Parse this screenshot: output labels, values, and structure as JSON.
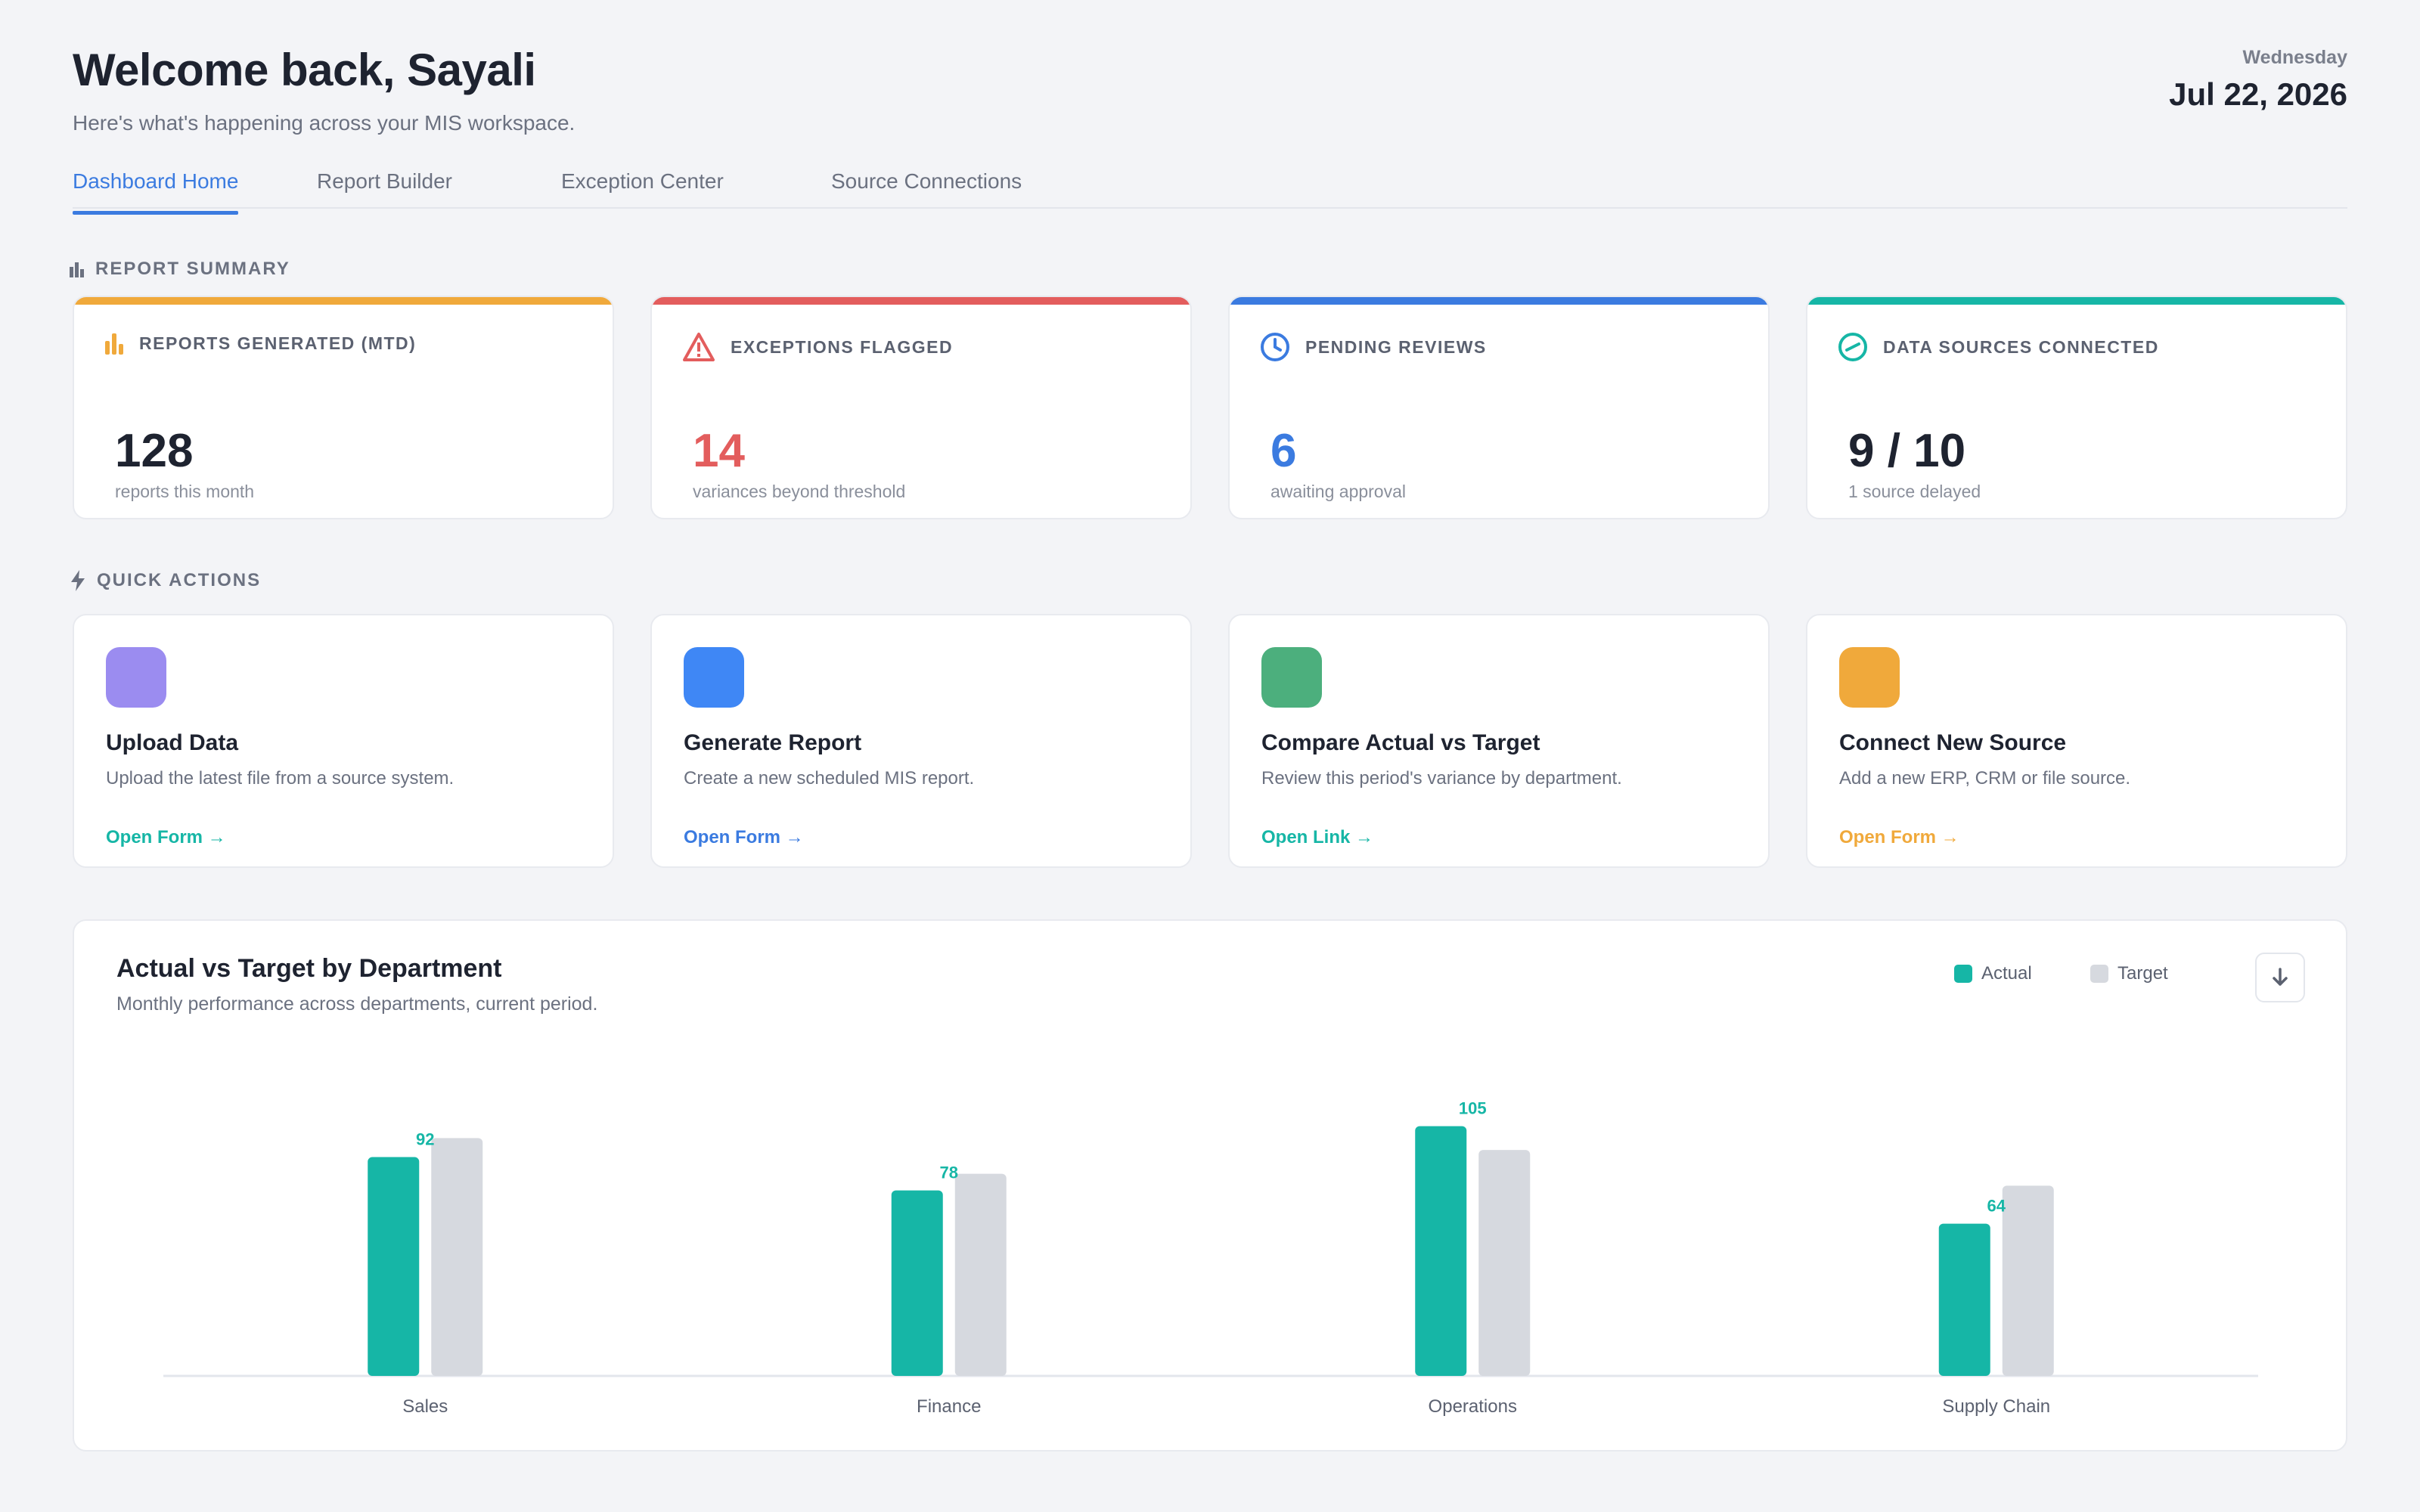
{
  "header": {
    "title": "Welcome back, Sayali",
    "subtitle": "Here's what's happening across your MIS workspace.",
    "weekday": "Wednesday",
    "date": "Jul 22, 2026"
  },
  "tabs": [
    {
      "label": "Dashboard Home",
      "active": true
    },
    {
      "label": "Report Builder",
      "active": false
    },
    {
      "label": "Exception Center",
      "active": false
    },
    {
      "label": "Source Connections",
      "active": false
    }
  ],
  "summary": {
    "label": "REPORT SUMMARY",
    "cards": [
      {
        "icon": "bar-chart-icon",
        "label": "REPORTS GENERATED (MTD)",
        "value": "128",
        "note": "reports this month",
        "accent": "#f0a93b",
        "value_color": "#1e2330"
      },
      {
        "icon": "warning-icon",
        "label": "EXCEPTIONS FLAGGED",
        "value": "14",
        "note": "variances beyond threshold",
        "accent": "#e35d5d",
        "value_color": "#e35d5d"
      },
      {
        "icon": "clock-icon",
        "label": "PENDING REVIEWS",
        "value": "6",
        "note": "awaiting approval",
        "accent": "#3b7be0",
        "value_color": "#3b7be0"
      },
      {
        "icon": "gauge-icon",
        "label": "DATA SOURCES CONNECTED",
        "value": "9 / 10",
        "note": "1 source delayed",
        "accent": "#16b6a6",
        "value_color": "#1e2330"
      }
    ]
  },
  "quick_actions": {
    "label": "QUICK ACTIONS",
    "cards": [
      {
        "title": "Upload Data",
        "desc": "Upload the latest file from a source system.",
        "link": "Open Form →",
        "color": "#9b8cf0",
        "link_color": "#16b6a6"
      },
      {
        "title": "Generate Report",
        "desc": "Create a new scheduled MIS report.",
        "link": "Open Form →",
        "color": "#3f87f5",
        "link_color": "#3b7be0"
      },
      {
        "title": "Compare Actual vs Target",
        "desc": "Review this period's variance by department.",
        "link": "Open Link →",
        "color": "#4caf7d",
        "link_color": "#16b6a6"
      },
      {
        "title": "Connect New Source",
        "desc": "Add a new ERP, CRM or file source.",
        "link": "Open Form →",
        "color": "#f0a93b",
        "link_color": "#f0a93b"
      }
    ]
  },
  "chart_card": {
    "title": "Actual vs Target by Department",
    "subtitle": "Monthly performance across departments, current period.",
    "download_icon": "download-icon"
  },
  "chart_data": {
    "type": "bar",
    "categories": [
      "Sales",
      "Finance",
      "Operations",
      "Supply Chain"
    ],
    "series": [
      {
        "name": "Actual",
        "values": [
          92,
          78,
          105,
          64
        ],
        "color": "#16b6a6"
      },
      {
        "name": "Target",
        "values": [
          100,
          85,
          95,
          80
        ],
        "color": "#d6d9df"
      }
    ],
    "data_labels": [
      "92",
      "78",
      "105",
      "64"
    ],
    "ylim": [
      0,
      115
    ],
    "legend": "top-right",
    "grid": false
  }
}
